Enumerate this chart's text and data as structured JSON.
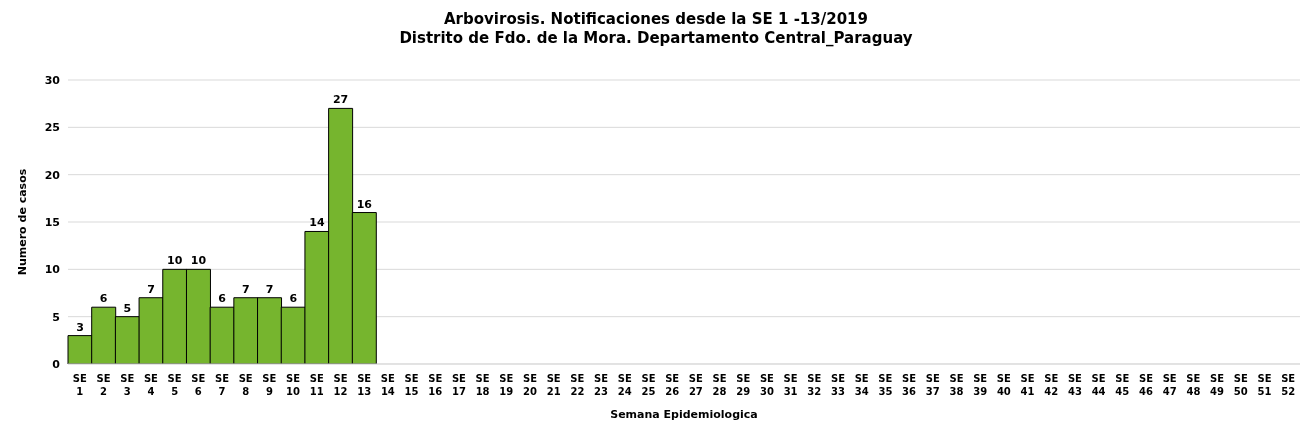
{
  "chart_data": {
    "type": "bar",
    "title": "Arbovirosis. Notificaciones desde la SE 1 -13/2019",
    "subtitle": "Distrito de Fdo. de la Mora. Departamento Central_Paraguay",
    "xlabel": "Semana Epidemiologica",
    "ylabel": "Numero de casos",
    "categories": [
      "SE 1",
      "SE 2",
      "SE 3",
      "SE 4",
      "SE 5",
      "SE 6",
      "SE 7",
      "SE 8",
      "SE 9",
      "SE 10",
      "SE 11",
      "SE 12",
      "SE 13",
      "SE 14",
      "SE 15",
      "SE 16",
      "SE 17",
      "SE 18",
      "SE 19",
      "SE 20",
      "SE 21",
      "SE 22",
      "SE 23",
      "SE 24",
      "SE 25",
      "SE 26",
      "SE 27",
      "SE 28",
      "SE 29",
      "SE 30",
      "SE 31",
      "SE 32",
      "SE 33",
      "SE 34",
      "SE 35",
      "SE 36",
      "SE 37",
      "SE 38",
      "SE 39",
      "SE 40",
      "SE 41",
      "SE 42",
      "SE 43",
      "SE 44",
      "SE 45",
      "SE 46",
      "SE 47",
      "SE 48",
      "SE 49",
      "SE 50",
      "SE 51",
      "SE 52"
    ],
    "values": [
      3,
      6,
      5,
      7,
      10,
      10,
      6,
      7,
      7,
      6,
      14,
      27,
      16,
      null,
      null,
      null,
      null,
      null,
      null,
      null,
      null,
      null,
      null,
      null,
      null,
      null,
      null,
      null,
      null,
      null,
      null,
      null,
      null,
      null,
      null,
      null,
      null,
      null,
      null,
      null,
      null,
      null,
      null,
      null,
      null,
      null,
      null,
      null,
      null,
      null,
      null,
      null
    ],
    "color": "#76b52e",
    "ylim": [
      0,
      30
    ],
    "yticks": [
      0,
      5,
      10,
      15,
      20,
      25,
      30
    ],
    "grid": "y",
    "data_labels": true
  }
}
